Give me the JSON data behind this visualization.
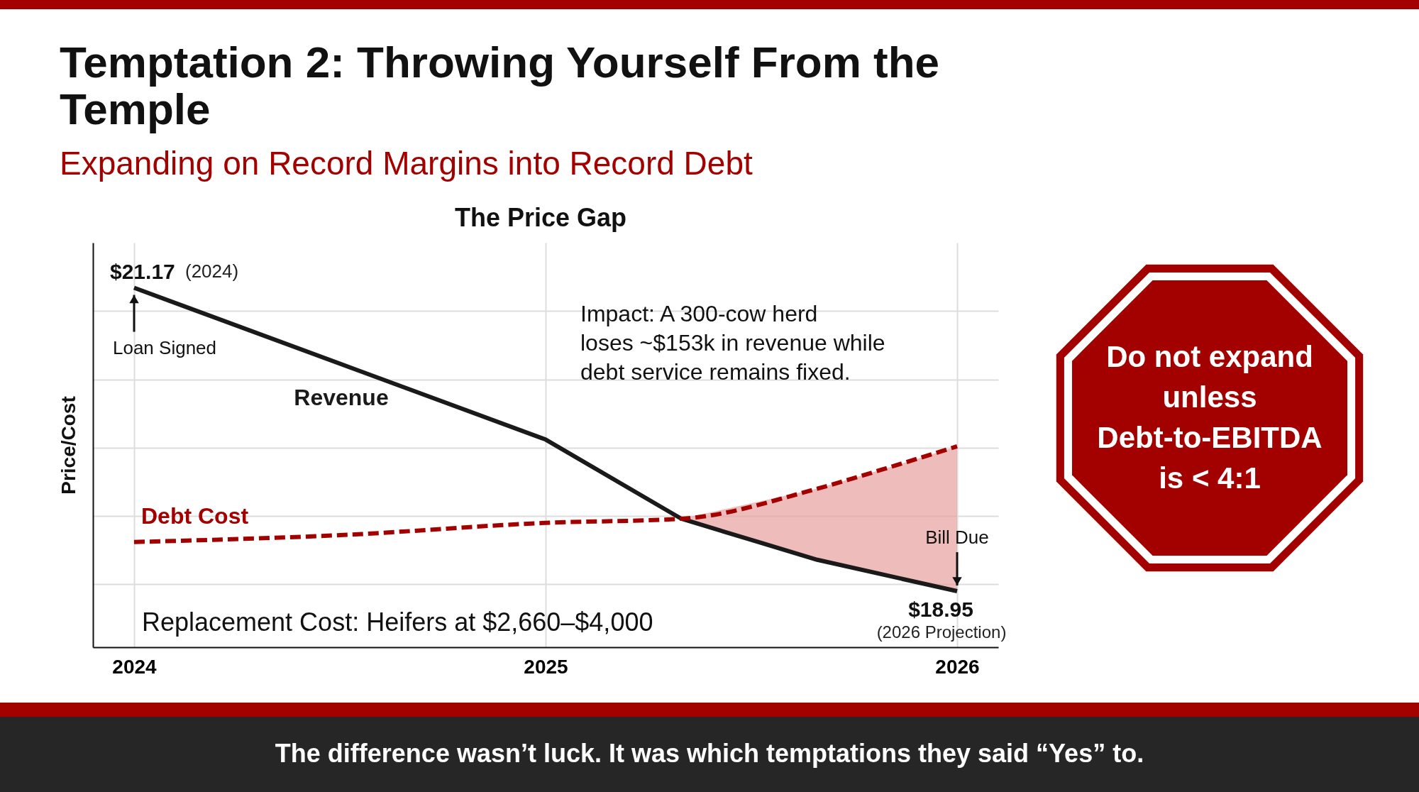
{
  "chart_data": {
    "type": "line",
    "title": "Temptation 2: Throwing Yourself From the Temple",
    "subtitle": "Expanding on Record Margins into Record Debt",
    "xlabel": null,
    "ylabel": "Price/Cost",
    "series": [
      {
        "name": "Revenue",
        "color": "#1a1a1a",
        "line_style": "solid",
        "x": [
          2024,
          2025,
          2025.33,
          2025.66,
          2026
        ],
        "values": [
          21.17,
          20.06,
          19.48,
          19.18,
          18.95
        ],
        "value_labels": [
          "$21.17",
          null,
          null,
          null,
          "$18.95"
        ]
      },
      {
        "name": "Debt Cost",
        "color": "#a30000",
        "line_style": "dashed",
        "x": [
          2024,
          2024.5,
          2025,
          2025.33,
          2025.66,
          2025.85,
          2026
        ],
        "values": [
          19.31,
          19.36,
          19.45,
          19.48,
          19.7,
          19.87,
          20.01
        ]
      }
    ],
    "xlim": [
      2023.9,
      2026.1
    ],
    "xticks": [
      2024,
      2025,
      2026
    ],
    "ylim": [
      18.54,
      21.5
    ],
    "yticks": [
      {
        "value": 19.0,
        "label": null
      },
      {
        "value": 19.5,
        "label": null
      },
      {
        "value": 20.0,
        "label": null
      },
      {
        "value": 20.5,
        "label": null
      },
      {
        "value": 21.0,
        "label": null
      }
    ],
    "tick_labels": "x",
    "grid": true,
    "marker": "none",
    "annotations": [
      "The Price Gap",
      "(2024)",
      "(2026 Projection)",
      {
        "text": "Loan Signed",
        "x": 2024,
        "y": 21.17
      },
      {
        "text": "Bill Due",
        "x": 2026,
        "y": 18.95
      },
      "Impact: A 300-cow herd\nloses ~$153k in revenue while\ndebt service remains fixed.",
      "Replacement Cost: Heifers at $2,660–$4,000",
      "Do not expand unless Debt-to-EBITDA is < 4:1",
      "The difference wasn’t luck. It was which temptations they said “Yes” to."
    ]
  }
}
